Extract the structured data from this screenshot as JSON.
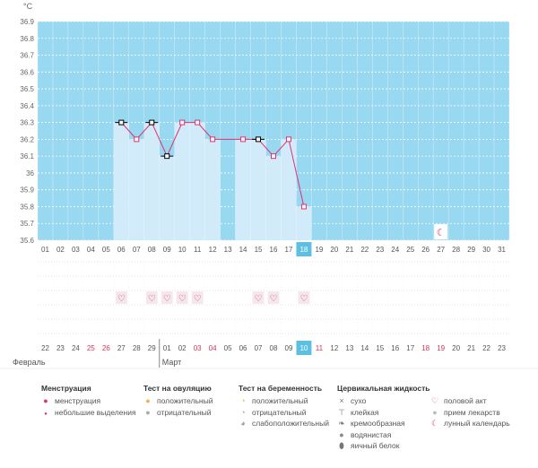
{
  "chart_data": {
    "type": "bar",
    "unit_label": "°C",
    "y_ticks": [
      "35.6",
      "35.7",
      "35.8",
      "35.9",
      "36",
      "36.1",
      "36.2",
      "36.3",
      "36.4",
      "36.5",
      "36.6",
      "36.7",
      "36.8",
      "36.9"
    ],
    "ylim": [
      35.6,
      36.9
    ],
    "grid": true,
    "cycle_days": [
      "01",
      "02",
      "03",
      "04",
      "05",
      "06",
      "07",
      "08",
      "09",
      "10",
      "11",
      "12",
      "13",
      "14",
      "15",
      "16",
      "17",
      "18",
      "19",
      "20",
      "21",
      "22",
      "23",
      "24",
      "25",
      "26",
      "27",
      "28",
      "29",
      "30",
      "31"
    ],
    "calendar_dates": [
      "22",
      "23",
      "24",
      "25",
      "26",
      "27",
      "28",
      "29",
      "01",
      "02",
      "03",
      "04",
      "05",
      "06",
      "07",
      "08",
      "09",
      "10",
      "11",
      "12",
      "13",
      "14",
      "15",
      "16",
      "17",
      "18",
      "19",
      "20",
      "21",
      "22",
      "23"
    ],
    "weekend_date_indices": [
      3,
      4,
      10,
      11,
      18,
      25,
      26
    ],
    "current_index": 17,
    "month_labels": [
      {
        "label": "Февраль",
        "index": 0
      },
      {
        "label": "Март",
        "index": 8
      }
    ],
    "temperatures": [
      null,
      null,
      null,
      null,
      null,
      36.3,
      36.2,
      36.3,
      36.1,
      36.3,
      36.3,
      36.2,
      null,
      36.2,
      36.2,
      36.1,
      36.2,
      35.8,
      null,
      null,
      null,
      null,
      null,
      null,
      null,
      null,
      null,
      null,
      null,
      null,
      null
    ],
    "marker_style": [
      "",
      "",
      "",
      "",
      "",
      "black",
      "pink",
      "black",
      "black",
      "pink",
      "pink",
      "pink",
      "",
      "pink",
      "black",
      "pink",
      "pink",
      "pink",
      "",
      "",
      "",
      "",
      "",
      "",
      "",
      "",
      "",
      "",
      "",
      "",
      ""
    ],
    "intercourse_days": [
      5,
      7,
      8,
      9,
      10,
      14,
      15,
      17
    ],
    "moon_day_index": 26,
    "colors": {
      "fill": "#d2ebfa",
      "band": "#98d8f0",
      "line": "#e03070",
      "grid": "#dddddd",
      "text_red": "#e0305a",
      "current": "#5ec0e0"
    }
  },
  "legend": {
    "menstruation": {
      "title": "Менструация",
      "items": [
        "менструация",
        "небольшие выделения"
      ]
    },
    "ovulation": {
      "title": "Тест на овуляцию",
      "items": [
        "положительный",
        "отрицательный"
      ]
    },
    "pregnancy": {
      "title": "Тест на беременность",
      "items": [
        "положительный",
        "отрицательный",
        "слабоположительный"
      ]
    },
    "cervical": {
      "title": "Цервикальная жидкость",
      "items": [
        "сухо",
        "клейкая",
        "кремообразная",
        "водянистая",
        "яичный белок"
      ]
    },
    "other": {
      "items": [
        "половой акт",
        "прием лекарств",
        "лунный календарь"
      ]
    }
  }
}
